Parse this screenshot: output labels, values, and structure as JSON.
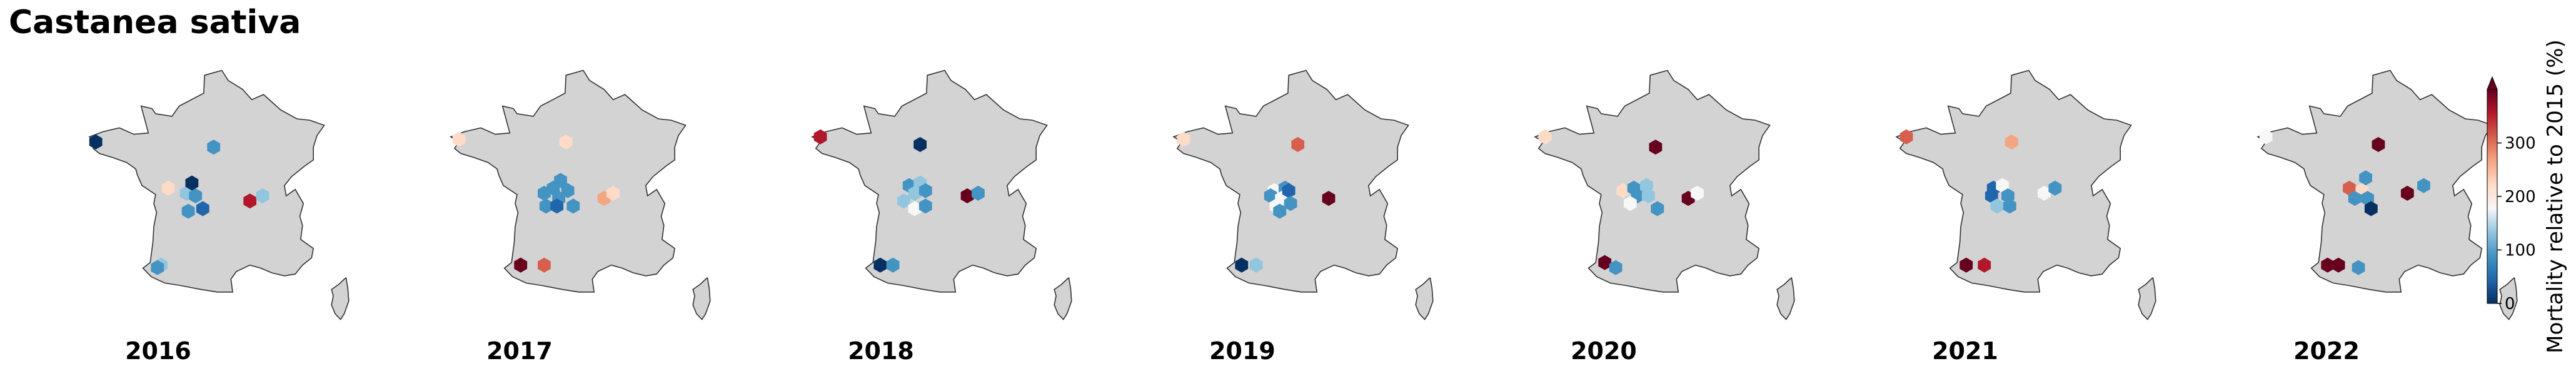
{
  "title": "Castanea sativa",
  "chart_data": {
    "type": "hexbin-map",
    "title": "Castanea sativa",
    "base_map": "France",
    "panels": [
      {
        "year": "2016",
        "cells": [
          [
            -4.4,
            48.3,
            0
          ],
          [
            2.1,
            48.1,
            100
          ],
          [
            -0.4,
            46.5,
            200
          ],
          [
            0.6,
            46.3,
            130
          ],
          [
            1.1,
            46.2,
            110
          ],
          [
            0.9,
            46.7,
            30
          ],
          [
            4.1,
            46.0,
            350
          ],
          [
            4.8,
            46.2,
            130
          ],
          [
            0.7,
            45.6,
            90
          ],
          [
            1.5,
            45.7,
            70
          ],
          [
            -0.8,
            43.5,
            150
          ],
          [
            -1.0,
            43.4,
            100
          ]
        ]
      },
      {
        "year": "2017",
        "cells": [
          [
            -4.3,
            48.4,
            200
          ],
          [
            1.6,
            48.3,
            230
          ],
          [
            0.9,
            46.5,
            90
          ],
          [
            1.3,
            46.8,
            90
          ],
          [
            1.7,
            46.4,
            90
          ],
          [
            1.2,
            46.1,
            80
          ],
          [
            0.4,
            46.3,
            100
          ],
          [
            0.5,
            45.8,
            90
          ],
          [
            1.1,
            45.8,
            70
          ],
          [
            2.0,
            45.8,
            80
          ],
          [
            3.7,
            46.1,
            260
          ],
          [
            4.2,
            46.3,
            230
          ],
          [
            -0.9,
            43.5,
            400
          ],
          [
            0.4,
            43.5,
            280
          ]
        ]
      },
      {
        "year": "2018",
        "cells": [
          [
            -4.3,
            48.5,
            330
          ],
          [
            1.2,
            48.2,
            10
          ],
          [
            0.6,
            46.6,
            110
          ],
          [
            1.2,
            46.7,
            140
          ],
          [
            0.9,
            46.3,
            130
          ],
          [
            1.5,
            46.4,
            90
          ],
          [
            0.3,
            46.0,
            150
          ],
          [
            0.9,
            45.7,
            160
          ],
          [
            1.5,
            45.8,
            90
          ],
          [
            3.8,
            46.2,
            380
          ],
          [
            4.4,
            46.3,
            100
          ],
          [
            -1.0,
            43.5,
            10
          ],
          [
            -0.3,
            43.5,
            100
          ]
        ]
      },
      {
        "year": "2019",
        "cells": [
          [
            -4.2,
            48.4,
            230
          ],
          [
            2.1,
            48.2,
            300
          ],
          [
            0.8,
            46.4,
            160
          ],
          [
            1.4,
            46.5,
            100
          ],
          [
            0.6,
            46.2,
            110
          ],
          [
            1.2,
            46.1,
            160
          ],
          [
            1.6,
            46.4,
            60
          ],
          [
            0.9,
            45.8,
            170
          ],
          [
            1.7,
            45.9,
            100
          ],
          [
            1.1,
            45.6,
            110
          ],
          [
            3.8,
            46.1,
            380
          ],
          [
            -1.0,
            43.5,
            5
          ],
          [
            -0.2,
            43.5,
            140
          ]
        ]
      },
      {
        "year": "2020",
        "cells": [
          [
            -4.2,
            48.5,
            230
          ],
          [
            1.9,
            48.1,
            400
          ],
          [
            0.1,
            46.4,
            220
          ],
          [
            0.7,
            46.5,
            110
          ],
          [
            1.4,
            46.6,
            140
          ],
          [
            0.9,
            46.2,
            80
          ],
          [
            1.5,
            46.2,
            130
          ],
          [
            0.5,
            45.9,
            160
          ],
          [
            2.0,
            45.7,
            110
          ],
          [
            3.7,
            46.1,
            380
          ],
          [
            4.2,
            46.3,
            180
          ],
          [
            -0.9,
            43.6,
            380
          ],
          [
            -0.3,
            43.4,
            110
          ]
        ]
      },
      {
        "year": "2021",
        "cells": [
          [
            -4.2,
            48.5,
            280
          ],
          [
            1.6,
            48.3,
            250
          ],
          [
            0.6,
            46.5,
            50
          ],
          [
            1.1,
            46.6,
            170
          ],
          [
            1.4,
            46.2,
            90
          ],
          [
            0.5,
            46.2,
            60
          ],
          [
            0.8,
            45.8,
            130
          ],
          [
            1.5,
            45.8,
            80
          ],
          [
            3.4,
            46.3,
            160
          ],
          [
            4.0,
            46.5,
            110
          ],
          [
            -0.9,
            43.5,
            380
          ],
          [
            0.1,
            43.5,
            350
          ]
        ]
      },
      {
        "year": "2022",
        "cells": [
          [
            -4.3,
            48.5,
            160
          ],
          [
            1.9,
            48.2,
            390
          ],
          [
            1.2,
            46.9,
            110
          ],
          [
            0.3,
            46.5,
            280
          ],
          [
            1.0,
            46.4,
            220
          ],
          [
            1.3,
            46.1,
            100
          ],
          [
            0.6,
            46.1,
            110
          ],
          [
            1.5,
            45.7,
            30
          ],
          [
            3.5,
            46.3,
            380
          ],
          [
            4.4,
            46.6,
            90
          ],
          [
            -0.9,
            43.5,
            390
          ],
          [
            -0.3,
            43.5,
            360
          ],
          [
            0.8,
            43.4,
            100
          ]
        ]
      }
    ],
    "colorbar": {
      "label": "Mortality relative to 2015 (%)",
      "ticks": [
        "0",
        "100",
        "200",
        "300"
      ],
      "tick_values": [
        0,
        100,
        200,
        300
      ],
      "range": [
        0,
        400
      ],
      "extend": "max",
      "colormap": "RdBu_r (diverging, 100% = neutral)",
      "colors": [
        "#053061",
        "#2166ac",
        "#4393c3",
        "#92c5de",
        "#f7f7f7",
        "#fddbc7",
        "#f4a582",
        "#d6604d",
        "#b2182b",
        "#67001f"
      ]
    },
    "map_colors": {
      "land": "#d3d3d3",
      "coast": "#333333"
    }
  }
}
